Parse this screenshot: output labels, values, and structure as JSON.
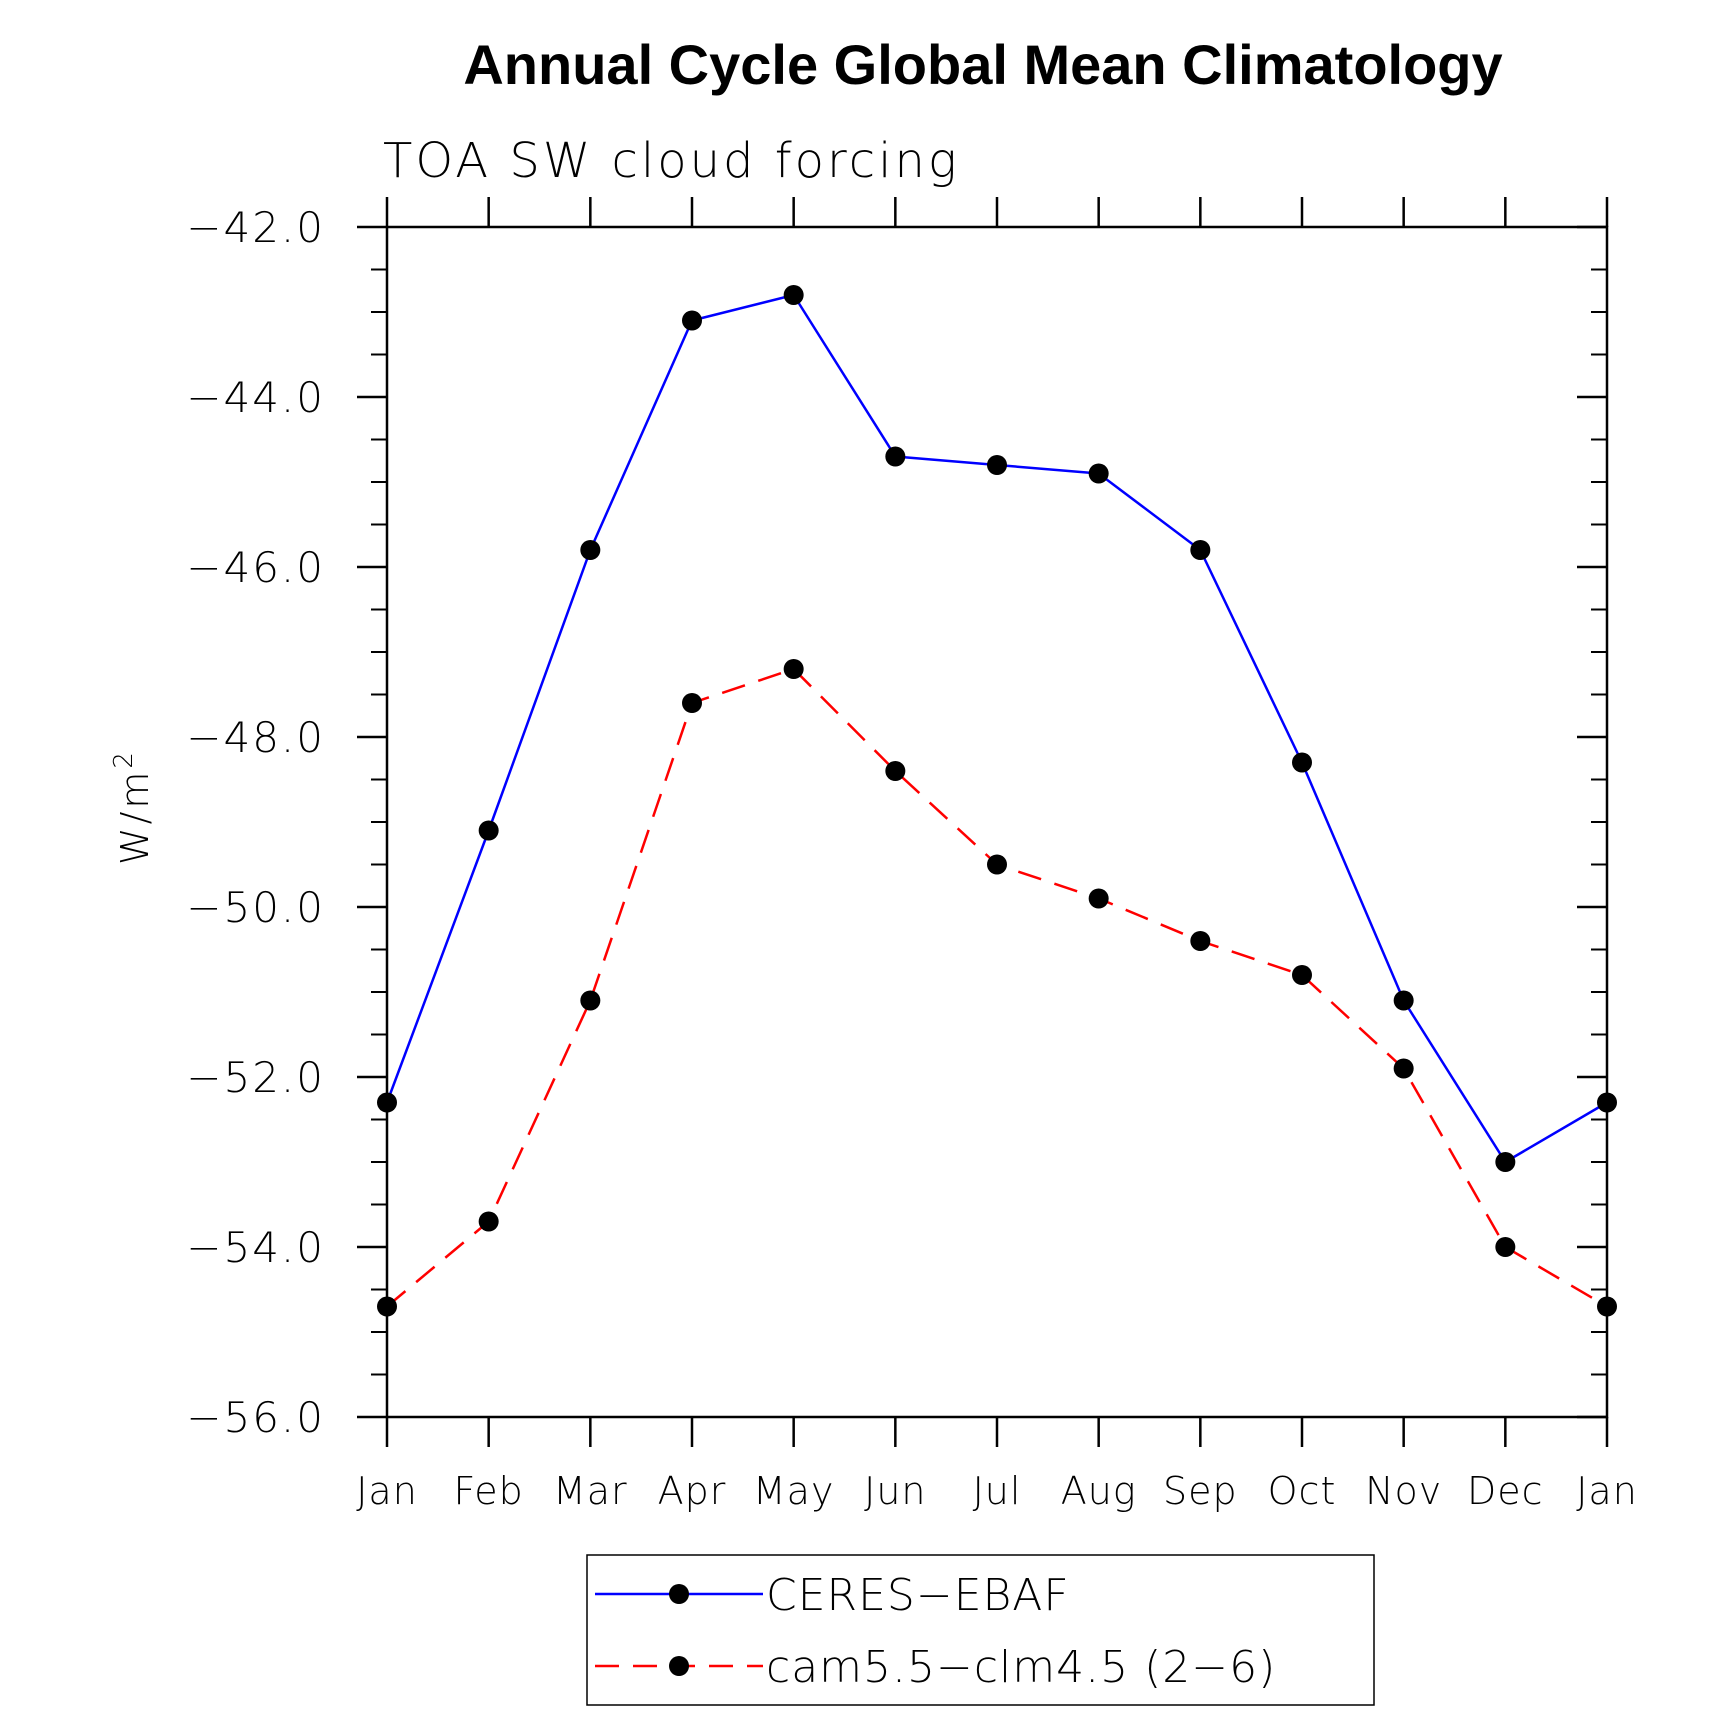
{
  "colors": {
    "ceres": "#0000ff",
    "cam": "#ff0000",
    "marker": "#000000",
    "axis": "#000000"
  },
  "chart_data": {
    "type": "line",
    "title": "Annual Cycle Global Mean Climatology",
    "subtitle": "TOA SW cloud forcing",
    "ylabel_base": "W/m",
    "ylabel_sup": "2",
    "xlabel": "",
    "categories": [
      "Jan",
      "Feb",
      "Mar",
      "Apr",
      "May",
      "Jun",
      "Jul",
      "Aug",
      "Sep",
      "Oct",
      "Nov",
      "Dec",
      "Jan"
    ],
    "ylim": [
      -56.0,
      -42.0
    ],
    "yticks": [
      -42.0,
      -44.0,
      -46.0,
      -48.0,
      -50.0,
      -52.0,
      -54.0,
      -56.0
    ],
    "ytick_labels": [
      "−42.0",
      "−44.0",
      "−46.0",
      "−48.0",
      "−50.0",
      "−52.0",
      "−54.0",
      "−56.0"
    ],
    "y_minor_step": 0.5,
    "grid": false,
    "legend_position": "bottom-center",
    "series": [
      {
        "name": "CERES−EBAF",
        "line_style": "solid",
        "values": [
          -52.3,
          -49.1,
          -45.8,
          -43.1,
          -42.8,
          -44.7,
          -44.8,
          -44.9,
          -45.8,
          -48.3,
          -51.1,
          -53.0,
          -52.3
        ]
      },
      {
        "name": "cam5.5−clm4.5 (2−6)",
        "line_style": "dashed",
        "values": [
          -54.7,
          -53.7,
          -51.1,
          -47.6,
          -47.2,
          -48.4,
          -49.5,
          -49.9,
          -50.4,
          -50.8,
          -51.9,
          -54.0,
          -54.7
        ]
      }
    ]
  }
}
